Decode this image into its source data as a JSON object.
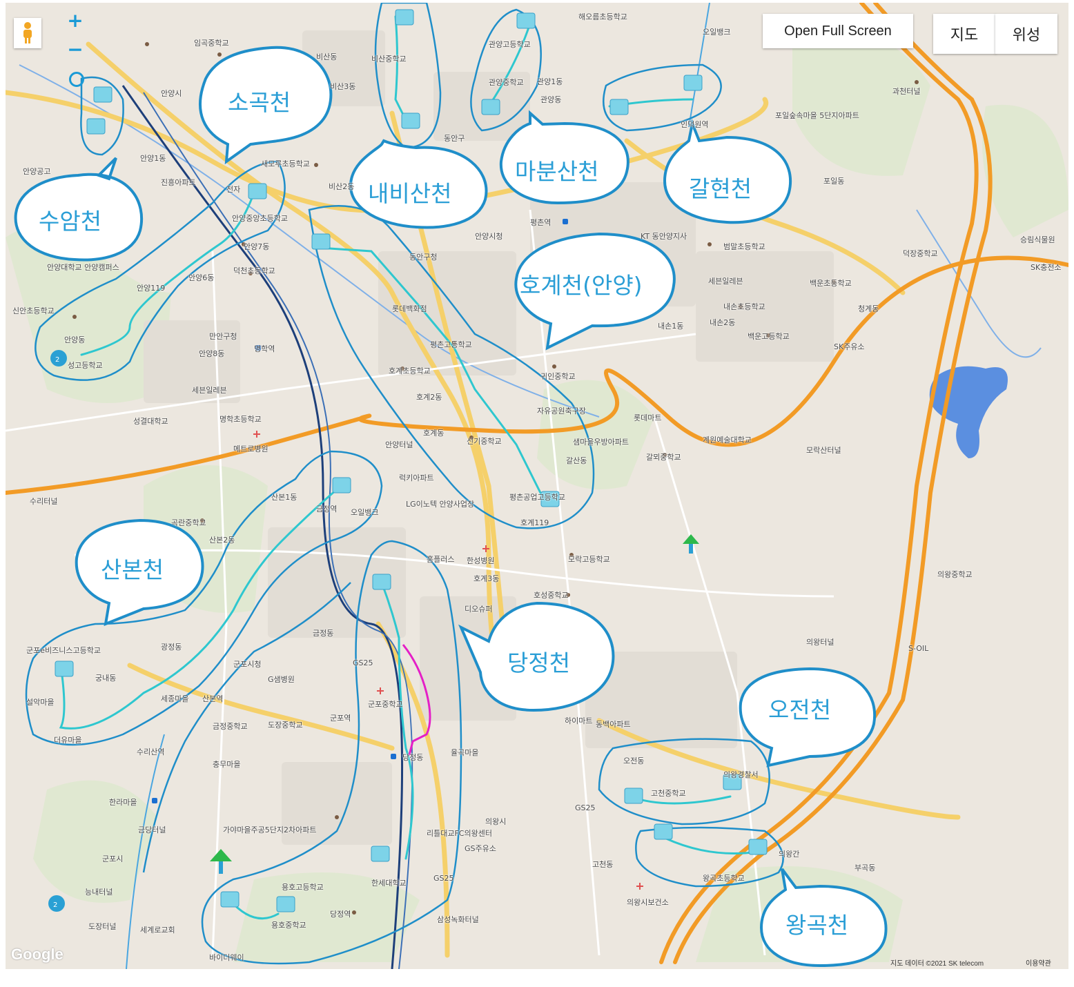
{
  "controls": {
    "full_screen": "Open Full Screen",
    "map_type_map": "지도",
    "map_type_satellite": "위성",
    "zoom_in": "+",
    "zoom_out": "−"
  },
  "footer": {
    "map_data": "지도 데이터 ©2021 SK telecom",
    "terms": "이용약관",
    "google_logo": "Google"
  },
  "streams": [
    {
      "name": "소곡천"
    },
    {
      "name": "수암천"
    },
    {
      "name": "내비산천"
    },
    {
      "name": "마분산천"
    },
    {
      "name": "갈현천"
    },
    {
      "name": "호계천(안양)"
    },
    {
      "name": "산본천"
    },
    {
      "name": "당정천"
    },
    {
      "name": "오전천"
    },
    {
      "name": "왕곡천"
    }
  ],
  "place_labels": [
    "임곡중학교",
    "해오름초등학교",
    "오일뱅크",
    "비산동",
    "비산중학교",
    "관양고등학교",
    "관양중학교",
    "관양1동",
    "관양동",
    "과천터널",
    "포일숲속마을 5단지아파트",
    "인덕원역",
    "동안구",
    "안양시",
    "비산3동",
    "비산2동",
    "새모루초등학교",
    "안양1동",
    "진흥아파트",
    "전자",
    "안양공고",
    "신안초등학교",
    "안양중앙초등학교",
    "안양7동",
    "안양6동",
    "덕천초등학교",
    "안양대학교 안양캠퍼스",
    "안양119",
    "안양동",
    "성고등학교",
    "명학역",
    "만안구청",
    "안양8동",
    "세븐일레븐",
    "성결대학교",
    "명학초등학교",
    "메트로병원",
    "수리터널",
    "안양시청",
    "평촌역",
    "동안구청",
    "롯데백화점",
    "평촌고등학교",
    "호계초등학교",
    "호계2동",
    "호계동",
    "안양터널",
    "신기중학교",
    "럭키아파트",
    "LG이노텍 안양사업장",
    "평촌공업고등학교",
    "호계119",
    "귀인중학교",
    "자유공원축구장",
    "샘마을우방아파트",
    "갈산동",
    "롯데마트",
    "계원예술대학교",
    "갈뫼중학교",
    "모락산터널",
    "KT 동안양지사",
    "범말초등학교",
    "세븐일레븐",
    "내손초등학교",
    "내손1동",
    "내손2동",
    "백운고등학교",
    "SK주유소",
    "덕장중학교",
    "SK충전소",
    "승림식물원",
    "청계동",
    "포일동",
    "백운초등학교",
    "산본1동",
    "금정역",
    "오일뱅크",
    "곡란중학교",
    "산본2동",
    "홈플러스",
    "한성병원",
    "호계3동",
    "모락고등학교",
    "호성중학교",
    "디오슈퍼",
    "궁내동",
    "군포e비즈니스고등학교",
    "광정동",
    "설악마을",
    "더유마을",
    "세종마을",
    "산본역",
    "금정동",
    "GS25",
    "군포시청",
    "G샘병원",
    "군포중학교",
    "군포역",
    "당정동",
    "율곡마을",
    "충무마을",
    "금정중학교",
    "도장중학교",
    "수리산역",
    "한라마을",
    "금당터널",
    "가야마을주공5단지2차아파트",
    "군포시",
    "능내터널",
    "도장터널",
    "세계로교회",
    "용호고등학교",
    "용호중학교",
    "당정역",
    "한세대학교",
    "GS25",
    "삼성녹화터널",
    "바이더웨이",
    "리틀대교FC의왕센터",
    "GS주유소",
    "의왕시",
    "의왕터널",
    "S-OIL",
    "의왕중학교",
    "고천중학교",
    "의왕경찰서",
    "GS25",
    "고천동",
    "의왕시보건소",
    "의왕간",
    "왕곡초등학교",
    "오전동",
    "하이마트",
    "동백아파트",
    "부곡동"
  ]
}
